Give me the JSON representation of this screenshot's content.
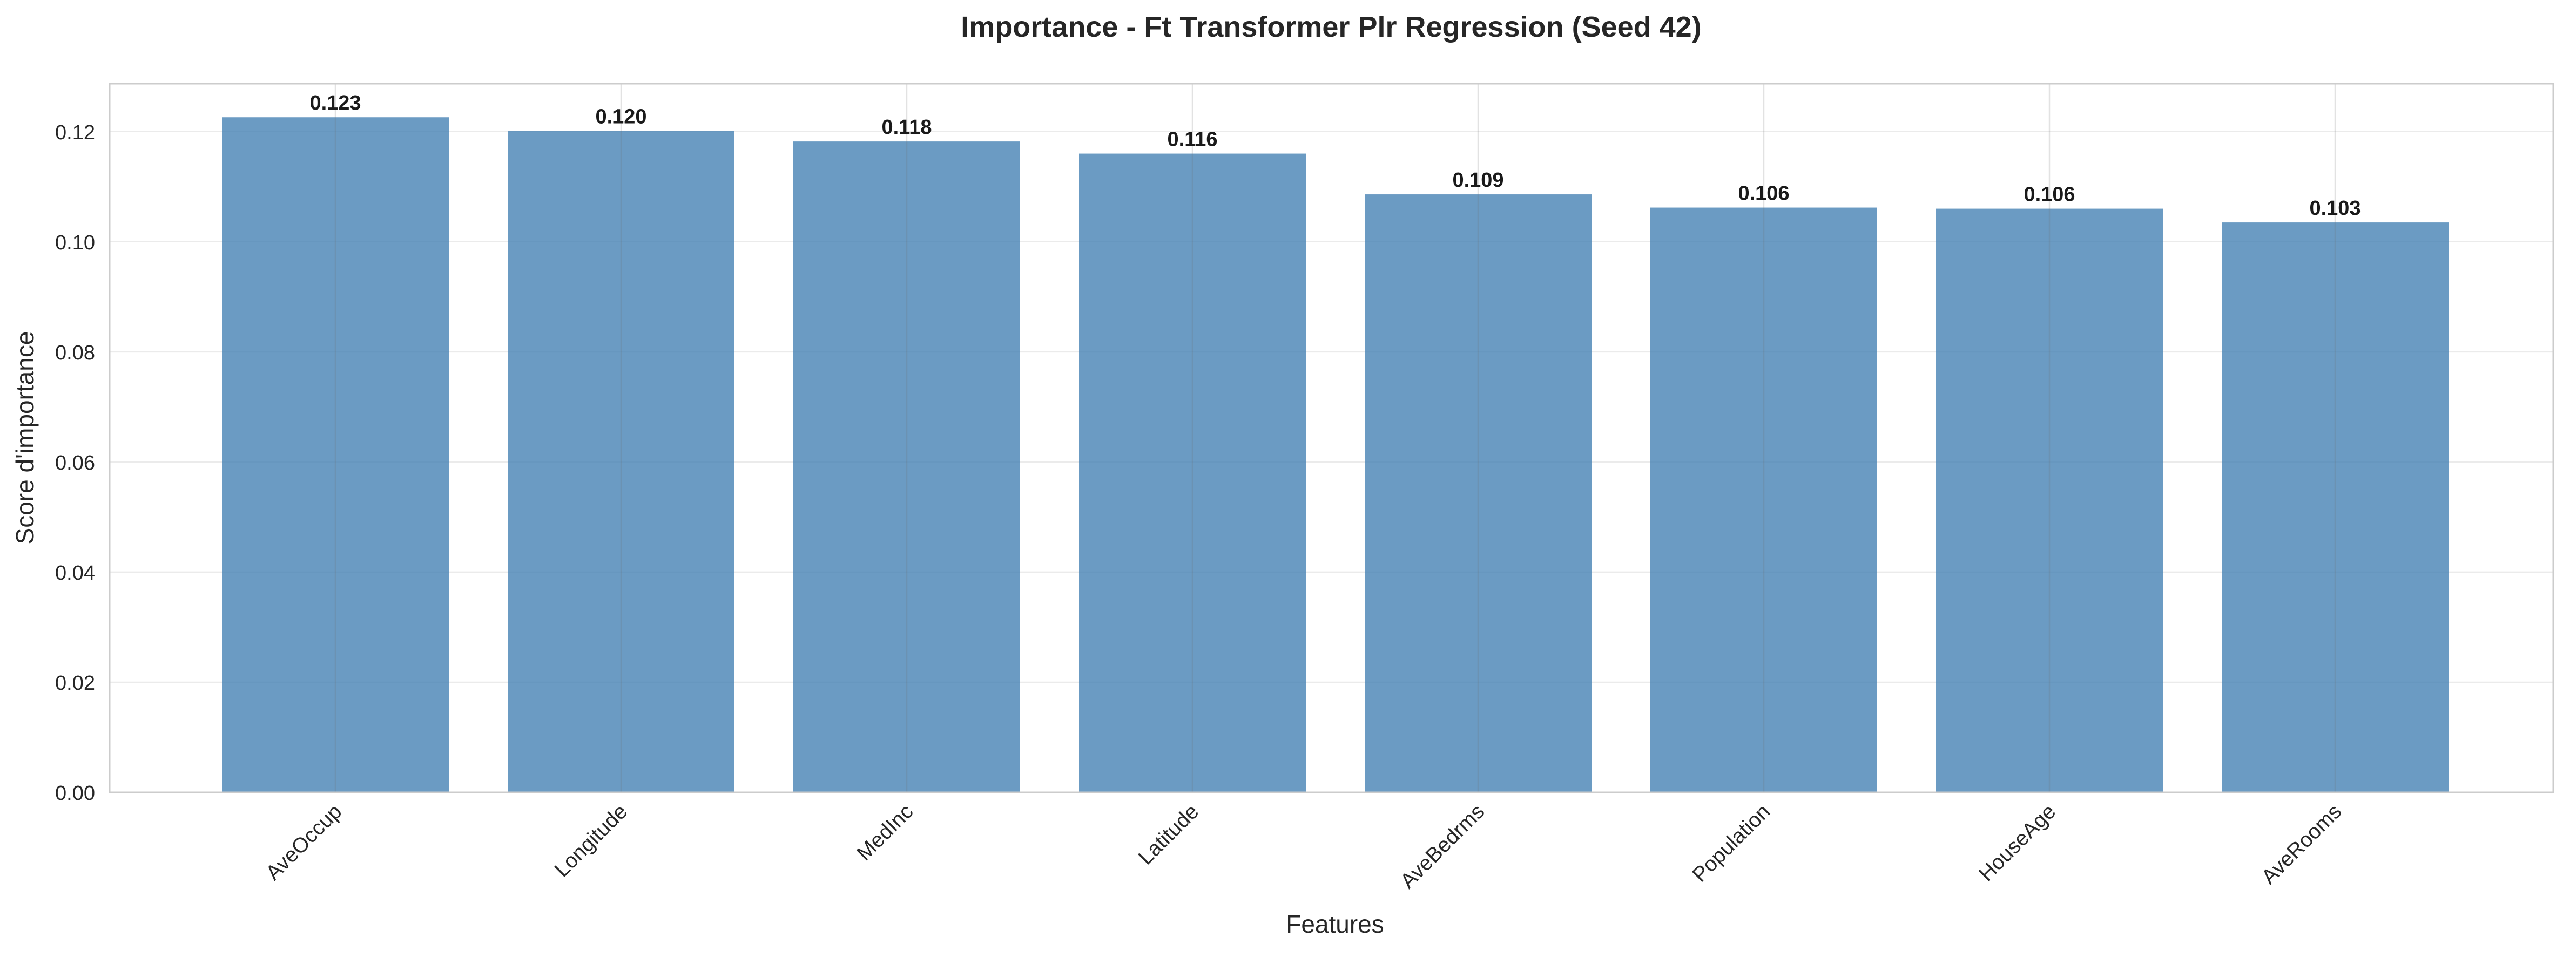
{
  "chart_data": {
    "type": "bar",
    "title": "Importance - Ft Transformer Plr Regression (Seed 42)",
    "xlabel": "Features",
    "ylabel": "Score d'importance",
    "categories": [
      "AveOccup",
      "Longitude",
      "MedInc",
      "Latitude",
      "AveBedrms",
      "Population",
      "HouseAge",
      "AveRooms"
    ],
    "values": [
      0.1226,
      0.1201,
      0.1182,
      0.116,
      0.1086,
      0.1062,
      0.106,
      0.1035
    ],
    "value_labels": [
      "0.123",
      "0.120",
      "0.118",
      "0.116",
      "0.109",
      "0.106",
      "0.106",
      "0.103"
    ],
    "ylim": [
      0,
      0.1287
    ],
    "yticks": [
      0.0,
      0.02,
      0.04,
      0.06,
      0.08,
      0.1,
      0.12
    ],
    "ytick_labels": [
      "0.00",
      "0.02",
      "0.04",
      "0.06",
      "0.08",
      "0.10",
      "0.12"
    ],
    "grid": true,
    "legend": "none",
    "colors": {
      "bar": "#4682b4",
      "grid": "#ebebeb",
      "axes_edge": "#cccccc",
      "text": "#262626"
    }
  }
}
